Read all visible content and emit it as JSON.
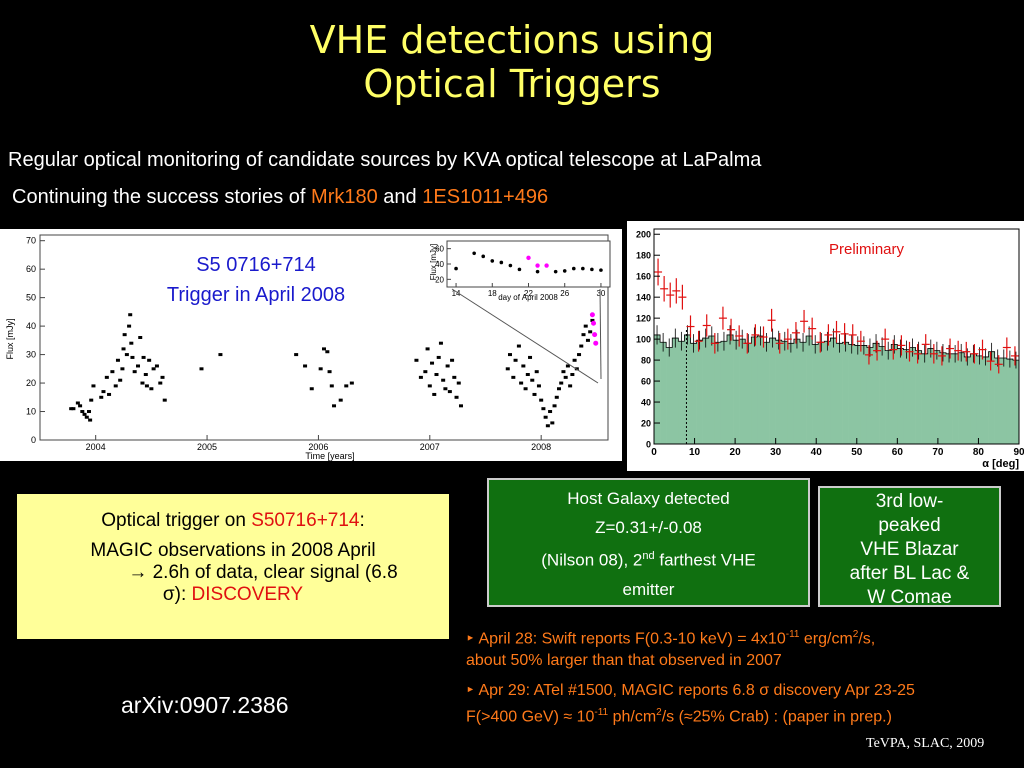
{
  "title": {
    "line1": "VHE detections using",
    "line2": "Optical Triggers"
  },
  "intro": {
    "line1": "Regular optical monitoring of candidate sources by KVA optical telescope at LaPalma",
    "line2_prefix": "Continuing the success stories of ",
    "source1": "Mrk180",
    "and": " and ",
    "source2": "1ES1011+496"
  },
  "lightcurve": {
    "label_line1": "S5 0716+714",
    "label_line2": "Trigger in April 2008",
    "ylabel": "Flux [mJy]",
    "xlabel": "Time [years]",
    "yticks": [
      "0",
      "10",
      "20",
      "30",
      "40",
      "50",
      "60",
      "70"
    ],
    "xticks": [
      "2004",
      "2005",
      "2006",
      "2007",
      "2008"
    ],
    "inset": {
      "ylabel": "Flux [mJy]",
      "xlabel": "day of April 2008",
      "yticks": [
        "20",
        "40",
        "60"
      ],
      "xticks": [
        "14",
        "18",
        "22",
        "26",
        "30"
      ]
    },
    "chart_data": {
      "type": "scatter",
      "xlim": [
        2003.5,
        2008.6
      ],
      "ylim": [
        0,
        72
      ],
      "series": [
        {
          "x": [
            2003.78,
            2003.8,
            2003.84,
            2003.86,
            2003.88,
            2003.9,
            2003.92,
            2003.94,
            2003.95,
            2003.96,
            2003.98,
            2004.05,
            2004.07,
            2004.1,
            2004.12,
            2004.15,
            2004.18,
            2004.2,
            2004.22,
            2004.24,
            2004.25,
            2004.26,
            2004.28,
            2004.3,
            2004.31,
            2004.32,
            2004.33,
            2004.35,
            2004.38,
            2004.4,
            2004.42,
            2004.43,
            2004.45,
            2004.46,
            2004.48,
            2004.5,
            2004.52,
            2004.55,
            2004.58,
            2004.6,
            2004.62
          ],
          "y": [
            11,
            11,
            13,
            12,
            10,
            9,
            8,
            10,
            7,
            14,
            19,
            15,
            17,
            22,
            16,
            24,
            19,
            28,
            21,
            25,
            32,
            37,
            30,
            40,
            44,
            34,
            29,
            24,
            26,
            36,
            20,
            29,
            23,
            19,
            28,
            18,
            25,
            26,
            20,
            22,
            14
          ]
        },
        {
          "x": [
            2004.95,
            2005.12,
            2005.8,
            2005.88,
            2005.94,
            2006.02,
            2006.05,
            2006.08,
            2006.1,
            2006.12,
            2006.14,
            2006.2,
            2006.25,
            2006.3
          ],
          "y": [
            25,
            30,
            30,
            26,
            18,
            25,
            32,
            31,
            24,
            19,
            12,
            14,
            19,
            20
          ]
        },
        {
          "x": [
            2006.88,
            2006.92,
            2006.96,
            2006.98,
            2007.0,
            2007.02,
            2007.04,
            2007.06,
            2007.08,
            2007.1,
            2007.12,
            2007.14,
            2007.16,
            2007.18,
            2007.2,
            2007.22,
            2007.24,
            2007.26,
            2007.28
          ],
          "y": [
            28,
            22,
            24,
            32,
            19,
            27,
            16,
            23,
            29,
            34,
            21,
            18,
            26,
            17,
            28,
            22,
            15,
            20,
            12
          ]
        },
        {
          "x": [
            2007.7,
            2007.72,
            2007.75,
            2007.77,
            2007.8,
            2007.82,
            2007.84,
            2007.86,
            2007.88,
            2007.9,
            2007.92,
            2007.94,
            2007.96,
            2007.98,
            2008.0,
            2008.02,
            2008.04,
            2008.06,
            2008.08,
            2008.1,
            2008.12,
            2008.14,
            2008.16,
            2008.18,
            2008.2,
            2008.22,
            2008.24,
            2008.26,
            2008.28,
            2008.3,
            2008.32,
            2008.34,
            2008.36,
            2008.38,
            2008.4,
            2008.42,
            2008.44,
            2008.46
          ],
          "y": [
            25,
            30,
            22,
            28,
            33,
            20,
            26,
            18,
            23,
            29,
            21,
            16,
            24,
            19,
            14,
            11,
            8,
            5,
            10,
            6,
            12,
            15,
            18,
            20,
            24,
            22,
            26,
            19,
            23,
            28,
            25,
            30,
            33,
            37,
            40,
            35,
            38,
            42
          ]
        }
      ],
      "highlight": {
        "x": [
          2008.46,
          2008.47,
          2008.48,
          2008.49
        ],
        "y": [
          44,
          41,
          37,
          34
        ]
      }
    },
    "inset_data": {
      "type": "scatter",
      "xlim": [
        13,
        31
      ],
      "ylim": [
        10,
        70
      ],
      "x": [
        14,
        16,
        17,
        18,
        19,
        20,
        21,
        23,
        25,
        26,
        27,
        28,
        29,
        30
      ],
      "y": [
        34,
        54,
        50,
        44,
        42,
        38,
        33,
        30,
        30,
        31,
        34,
        34,
        33,
        32
      ],
      "highlight_x": [
        22,
        23,
        24
      ],
      "highlight_y": [
        48,
        38,
        38
      ]
    }
  },
  "histogram": {
    "preliminary": "Preliminary",
    "xlabel": "α [deg]",
    "yticks": [
      "0",
      "20",
      "40",
      "60",
      "80",
      "100",
      "120",
      "140",
      "160",
      "180",
      "200"
    ],
    "xticks": [
      "0",
      "10",
      "20",
      "30",
      "40",
      "50",
      "60",
      "70",
      "80",
      "90"
    ],
    "chart_data": {
      "type": "bar",
      "xlim": [
        0,
        90
      ],
      "ylim": [
        0,
        205
      ],
      "bin_width": 1.5,
      "cut": 8,
      "off_values": [
        104,
        97,
        92,
        101,
        98,
        104,
        96,
        99,
        101,
        103,
        97,
        98,
        104,
        99,
        100,
        96,
        102,
        103,
        97,
        101,
        99,
        98,
        96,
        100,
        97,
        103,
        95,
        97,
        98,
        101,
        96,
        97,
        95,
        94,
        94,
        92,
        96,
        93,
        89,
        95,
        91,
        90,
        92,
        89,
        86,
        91,
        89,
        87,
        86,
        86,
        87,
        83,
        86,
        84,
        83,
        88,
        82,
        82,
        81,
        80
      ],
      "on_x": [
        1,
        2.5,
        4,
        5.5,
        7,
        9,
        11,
        13,
        15,
        17,
        19,
        21,
        23,
        25,
        27,
        29,
        31,
        33,
        35,
        37,
        39,
        41,
        43,
        45,
        47,
        49,
        51,
        53,
        55,
        57,
        59,
        61,
        63,
        65,
        67,
        69,
        71,
        73,
        75,
        77,
        79,
        81,
        83,
        85,
        87,
        89
      ],
      "on_y": [
        164,
        148,
        142,
        146,
        140,
        112,
        98,
        113,
        96,
        120,
        109,
        103,
        96,
        104,
        102,
        118,
        96,
        100,
        106,
        117,
        110,
        97,
        104,
        107,
        105,
        104,
        98,
        85,
        89,
        100,
        90,
        94,
        88,
        86,
        95,
        86,
        84,
        91,
        89,
        88,
        86,
        90,
        79,
        76,
        92,
        84
      ]
    }
  },
  "trigger_box": {
    "line1_prefix": "Optical trigger on ",
    "line1_source": "S50716+714",
    "line1_suffix": ":",
    "line2": "MAGIC observations in 2008 April",
    "line3": "→ 2.6h of data, clear signal (6.8",
    "line4_prefix": "σ): ",
    "line4_highlight": "DISCOVERY"
  },
  "host_box": {
    "line1": "Host Galaxy detected",
    "line2": "Z=0.31+/-0.08",
    "line3_prefix": "(Nilson 08), 2",
    "line3_sup": "nd",
    "line3_suffix": " farthest VHE",
    "line4": "emitter"
  },
  "blazar_box": {
    "line1": "3rd low-",
    "line2": "peaked",
    "line3": "VHE Blazar",
    "line4": "after BL Lac &",
    "line5": "W Comae"
  },
  "bullets": {
    "b1_a": "April 28: Swift reports F(0.3-10 keV) = 4x10",
    "b1_sup1": "-11",
    "b1_b": " erg/cm",
    "b1_sup2": "2",
    "b1_c": "/s,",
    "b1_line2": "about 50% larger than that observed in 2007",
    "b2_a": "Apr 29: ATel #1500, MAGIC reports 6.8 σ discovery Apr 23-25",
    "b2_line2_a": "F(>400 GeV) ≈ 10",
    "b2_sup1": "-11",
    "b2_line2_b": " ph/cm",
    "b2_sup2": "2",
    "b2_line2_c": "/s (≈25% Crab) : (paper in prep.)"
  },
  "arxiv": "arXiv:0907.2386",
  "footer": "TeVPA, SLAC, 2009",
  "colors": {
    "title": "#ffff66",
    "accent_orange": "#ff7a1a",
    "accent_red": "#e01010",
    "green_box": "#107010",
    "yellow_box": "#ffff99",
    "hist_fill": "#8cc5a3",
    "highlight": "#ff00ff"
  }
}
